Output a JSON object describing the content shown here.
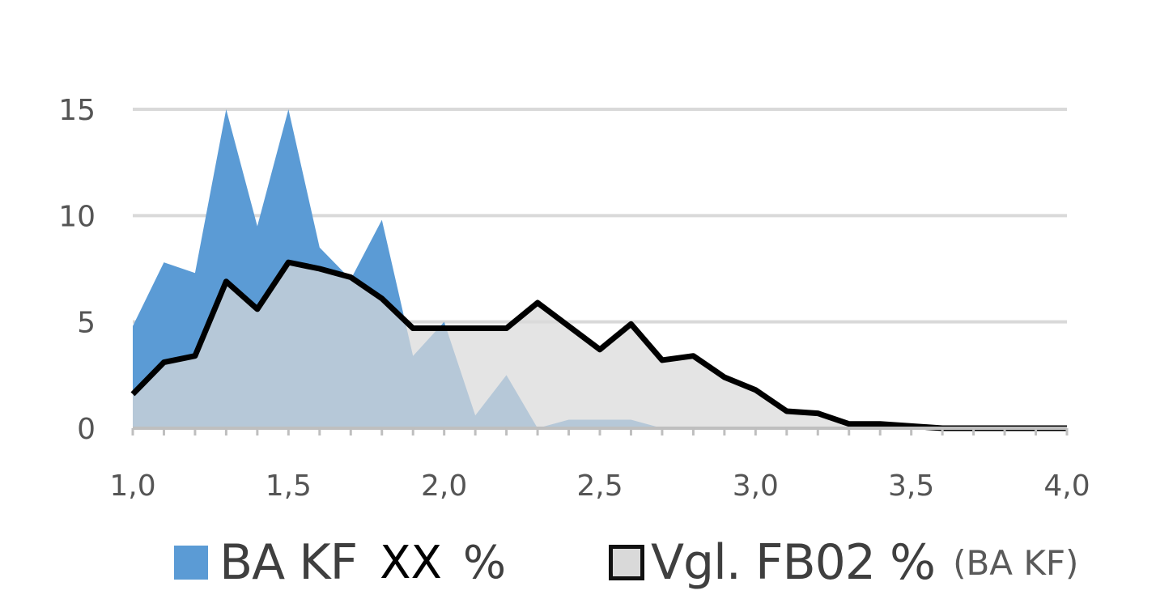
{
  "chart_data": {
    "type": "area",
    "xlim": [
      1.0,
      4.0
    ],
    "ylim": [
      0,
      15
    ],
    "x_ticks": [
      "1,0",
      "1,5",
      "2,0",
      "2,5",
      "3,0",
      "3,5",
      "4,0"
    ],
    "y_ticks": [
      "0",
      "5",
      "10",
      "15"
    ],
    "grid": true,
    "legend_position": "bottom",
    "x": [
      1.0,
      1.1,
      1.2,
      1.3,
      1.4,
      1.5,
      1.6,
      1.7,
      1.8,
      1.9,
      2.0,
      2.1,
      2.2,
      2.3,
      2.4,
      2.5,
      2.6,
      2.7,
      2.8,
      2.9,
      3.0,
      3.1,
      3.2,
      3.3,
      3.4,
      3.5,
      3.6,
      3.7,
      3.8,
      3.9,
      4.0
    ],
    "series": [
      {
        "name": "BA KF XX %",
        "style": "filled-area",
        "color": "#5b9bd5",
        "values": [
          4.8,
          7.8,
          7.3,
          15.0,
          9.5,
          15.0,
          8.5,
          7.0,
          9.8,
          3.4,
          5.0,
          0.6,
          2.5,
          0.0,
          0.4,
          0.4,
          0.4,
          0.0,
          0.0,
          0.0,
          0.0,
          0.0,
          0.0,
          0.0,
          0.0,
          0.0,
          0.0,
          0.0,
          0.0,
          0.0,
          0.0
        ]
      },
      {
        "name": "Vgl. FB02 %",
        "note": "(BA KF)",
        "style": "filled-area-outlined",
        "color": "#d9d9d9",
        "outline": "#000000",
        "values": [
          1.6,
          3.1,
          3.4,
          6.9,
          5.6,
          7.8,
          7.5,
          7.1,
          6.1,
          4.7,
          4.7,
          4.7,
          4.7,
          5.9,
          4.8,
          3.7,
          4.9,
          3.2,
          3.4,
          2.4,
          1.8,
          0.8,
          0.7,
          0.2,
          0.2,
          0.1,
          0.0,
          0.0,
          0.0,
          0.0,
          0.0
        ]
      }
    ]
  },
  "legend": {
    "a_main": "BA KF",
    "a_xx": "XX",
    "a_pct": "%",
    "b_main": "Vgl. FB02 %",
    "b_sub": "(BA KF)"
  }
}
